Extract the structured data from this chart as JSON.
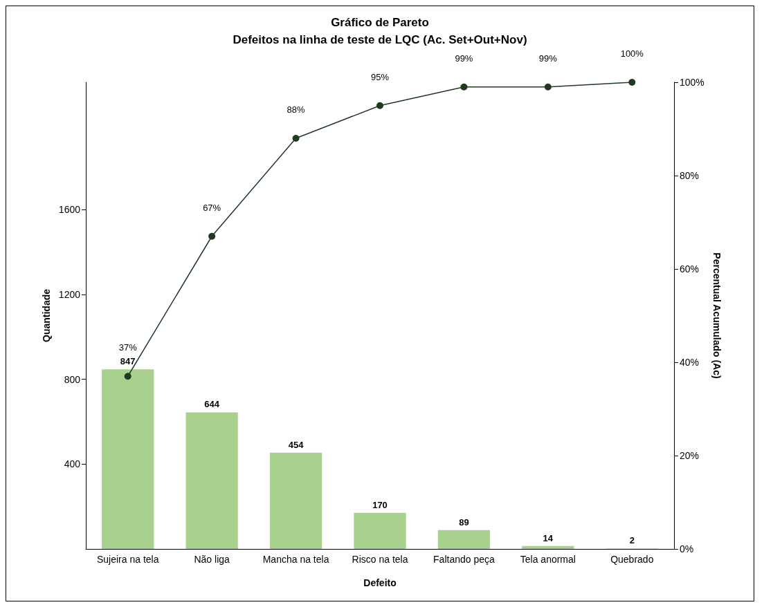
{
  "chart_data": {
    "type": "bar",
    "title": "Gráfico de Pareto",
    "subtitle": "Defeitos na linha de teste de LQC (Ac. Set+Out+Nov)",
    "xlabel": "Defeito",
    "ylabel": "Quantidade",
    "y2label": "Percentual Acumulado (Ac)",
    "categories": [
      "Sujeira na tela",
      "Não liga",
      "Mancha na tela",
      "Risco na tela",
      "Faltando peça",
      "Tela anormal",
      "Quebrado"
    ],
    "series": [
      {
        "color": "#a9d18e",
        "values": [
          847,
          644,
          454,
          170,
          89,
          14,
          2
        ],
        "value_labels": [
          "847",
          "644",
          "454",
          "170",
          "89",
          "14",
          "2"
        ]
      },
      {
        "type": "line",
        "axis": "y2",
        "color": "#1f3a1f",
        "marker": "circle",
        "values": [
          37,
          67,
          88,
          95,
          99,
          99,
          100
        ],
        "value_labels": [
          "37%",
          "67%",
          "88%",
          "95%",
          "99%",
          "99%",
          "100%"
        ]
      }
    ],
    "ylim": [
      0,
      2200
    ],
    "yticks": [
      400,
      800,
      1200,
      1600
    ],
    "y2lim": [
      0,
      100
    ],
    "y2ticks": [
      {
        "value": 0,
        "label": "0%"
      },
      {
        "value": 20,
        "label": "20%"
      },
      {
        "value": 40,
        "label": "40%"
      },
      {
        "value": 60,
        "label": "60%"
      },
      {
        "value": 80,
        "label": "80%"
      },
      {
        "value": 100,
        "label": "100%"
      }
    ],
    "grid": false
  }
}
